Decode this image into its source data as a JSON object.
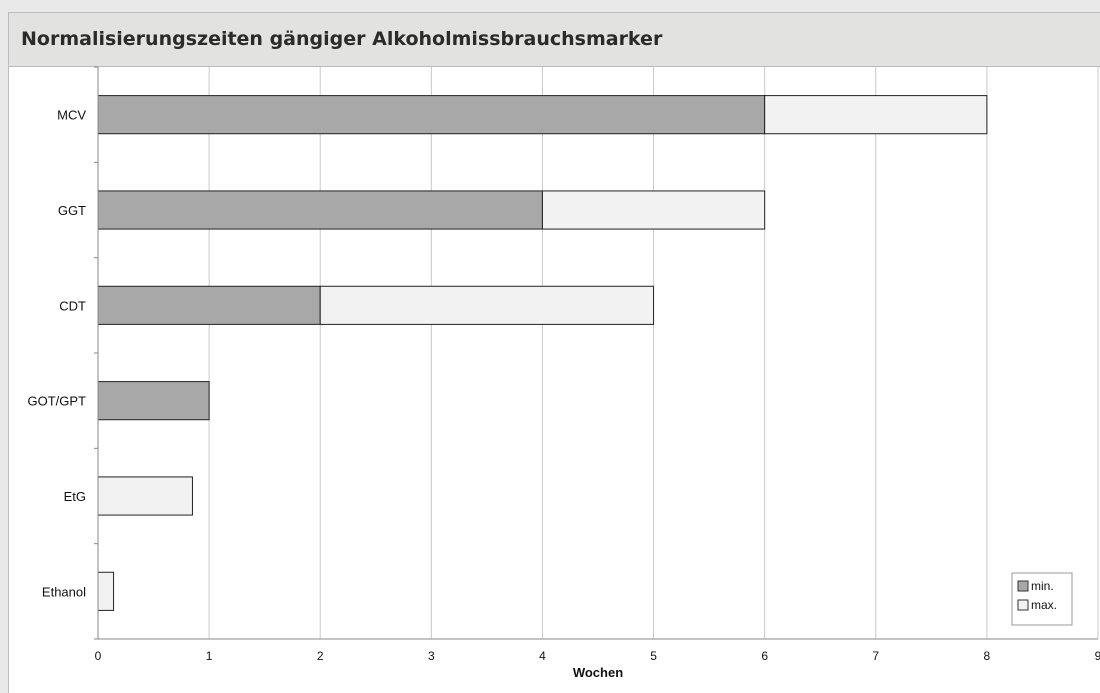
{
  "chart_data": {
    "type": "bar",
    "orientation": "horizontal",
    "stacked": true,
    "title": "Normalisierungszeiten gängiger Alkoholmissbrauchsmarker",
    "xlabel": "Wochen",
    "ylabel": "",
    "xlim": [
      0,
      9
    ],
    "xticks": [
      "0",
      "1",
      "2",
      "3",
      "4",
      "5",
      "6",
      "7",
      "8",
      "9"
    ],
    "grid": "vertical",
    "legend": "bottom-right",
    "categories": [
      "MCV",
      "GGT",
      "CDT",
      "GOT/GPT",
      "EtG",
      "Ethanol"
    ],
    "series": [
      {
        "name": "min.",
        "values": [
          6,
          4,
          2,
          1,
          0,
          0
        ],
        "color": "#a8a8a8"
      },
      {
        "name": "max.",
        "values": [
          2,
          2,
          3,
          0,
          0.85,
          0.14
        ],
        "color": "#f2f2f2"
      }
    ]
  }
}
